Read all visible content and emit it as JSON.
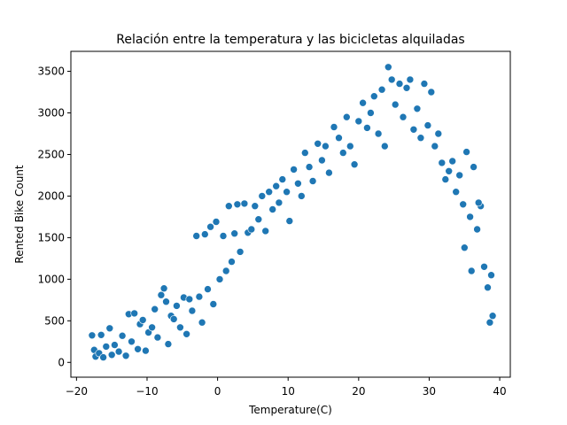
{
  "chart_data": {
    "type": "scatter",
    "title": "Relación entre la temperatura y las bicicletas alquiladas",
    "xlabel": "Temperature(C)",
    "ylabel": "Rented Bike Count",
    "xlim": [
      -20.8,
      41.5
    ],
    "ylim": [
      -178,
      3740
    ],
    "xticks": [
      -20,
      -10,
      0,
      10,
      20,
      30,
      40
    ],
    "xtick_labels": [
      "−20",
      "−10",
      "0",
      "10",
      "20",
      "30",
      "40"
    ],
    "yticks": [
      0,
      500,
      1000,
      1500,
      2000,
      2500,
      3000,
      3500
    ],
    "ytick_labels": [
      "0",
      "500",
      "1000",
      "1500",
      "2000",
      "2500",
      "3000",
      "3500"
    ],
    "grid": false,
    "legend": "none",
    "marker_color": "#1f77b4",
    "marker_edge_color": "#ffffff",
    "points": [
      [
        -17.8,
        325
      ],
      [
        -17.5,
        150
      ],
      [
        -17.3,
        70
      ],
      [
        -16.8,
        110
      ],
      [
        -16.5,
        330
      ],
      [
        -16.2,
        60
      ],
      [
        -15.8,
        190
      ],
      [
        -15.3,
        410
      ],
      [
        -15.0,
        90
      ],
      [
        -14.6,
        210
      ],
      [
        -14.0,
        130
      ],
      [
        -13.5,
        320
      ],
      [
        -13.0,
        80
      ],
      [
        -12.6,
        580
      ],
      [
        -12.2,
        250
      ],
      [
        -11.8,
        590
      ],
      [
        -11.3,
        160
      ],
      [
        -11.0,
        460
      ],
      [
        -10.6,
        510
      ],
      [
        -10.2,
        140
      ],
      [
        -9.8,
        360
      ],
      [
        -9.3,
        420
      ],
      [
        -8.9,
        640
      ],
      [
        -8.5,
        300
      ],
      [
        -8.0,
        810
      ],
      [
        -7.6,
        890
      ],
      [
        -7.3,
        730
      ],
      [
        -7.0,
        220
      ],
      [
        -6.6,
        560
      ],
      [
        -6.2,
        520
      ],
      [
        -5.8,
        680
      ],
      [
        -5.3,
        420
      ],
      [
        -4.8,
        780
      ],
      [
        -4.4,
        340
      ],
      [
        -4.0,
        760
      ],
      [
        -3.6,
        620
      ],
      [
        -3.0,
        1520
      ],
      [
        -2.6,
        790
      ],
      [
        -2.2,
        480
      ],
      [
        -1.8,
        1540
      ],
      [
        -1.4,
        880
      ],
      [
        -1.0,
        1630
      ],
      [
        -0.6,
        700
      ],
      [
        -0.2,
        1690
      ],
      [
        0.3,
        1000
      ],
      [
        0.8,
        1520
      ],
      [
        1.2,
        1100
      ],
      [
        1.6,
        1880
      ],
      [
        2.0,
        1210
      ],
      [
        2.4,
        1550
      ],
      [
        2.8,
        1900
      ],
      [
        3.2,
        1330
      ],
      [
        3.8,
        1910
      ],
      [
        4.3,
        1560
      ],
      [
        4.8,
        1600
      ],
      [
        5.3,
        1880
      ],
      [
        5.8,
        1720
      ],
      [
        6.3,
        2000
      ],
      [
        6.8,
        1580
      ],
      [
        7.3,
        2050
      ],
      [
        7.8,
        1840
      ],
      [
        8.3,
        2120
      ],
      [
        8.7,
        1920
      ],
      [
        9.2,
        2200
      ],
      [
        9.8,
        2050
      ],
      [
        10.2,
        1700
      ],
      [
        10.8,
        2320
      ],
      [
        11.4,
        2150
      ],
      [
        11.9,
        2000
      ],
      [
        12.4,
        2520
      ],
      [
        13.0,
        2350
      ],
      [
        13.5,
        2180
      ],
      [
        14.2,
        2630
      ],
      [
        14.8,
        2430
      ],
      [
        15.3,
        2600
      ],
      [
        15.8,
        2280
      ],
      [
        16.5,
        2830
      ],
      [
        17.2,
        2700
      ],
      [
        17.8,
        2520
      ],
      [
        18.3,
        2950
      ],
      [
        18.8,
        2600
      ],
      [
        19.4,
        2380
      ],
      [
        20.0,
        2900
      ],
      [
        20.6,
        3120
      ],
      [
        21.2,
        2820
      ],
      [
        21.7,
        3000
      ],
      [
        22.2,
        3200
      ],
      [
        22.8,
        2750
      ],
      [
        23.3,
        3280
      ],
      [
        23.7,
        2600
      ],
      [
        24.2,
        3550
      ],
      [
        24.7,
        3400
      ],
      [
        25.2,
        3100
      ],
      [
        25.8,
        3350
      ],
      [
        26.3,
        2950
      ],
      [
        26.8,
        3300
      ],
      [
        27.3,
        3400
      ],
      [
        27.8,
        2800
      ],
      [
        28.3,
        3050
      ],
      [
        28.8,
        2700
      ],
      [
        29.3,
        3350
      ],
      [
        29.8,
        2850
      ],
      [
        30.3,
        3250
      ],
      [
        30.8,
        2600
      ],
      [
        31.3,
        2750
      ],
      [
        31.8,
        2400
      ],
      [
        32.3,
        2200
      ],
      [
        32.8,
        2300
      ],
      [
        33.3,
        2420
      ],
      [
        33.8,
        2050
      ],
      [
        34.3,
        2250
      ],
      [
        34.8,
        1900
      ],
      [
        35.3,
        2530
      ],
      [
        35.8,
        1750
      ],
      [
        36.3,
        2350
      ],
      [
        36.8,
        1600
      ],
      [
        37.3,
        1880
      ],
      [
        37.8,
        1150
      ],
      [
        38.3,
        900
      ],
      [
        38.8,
        1050
      ],
      [
        39.0,
        560
      ],
      [
        38.6,
        480
      ],
      [
        37.0,
        1920
      ],
      [
        36.0,
        1100
      ],
      [
        35.0,
        1380
      ]
    ]
  }
}
